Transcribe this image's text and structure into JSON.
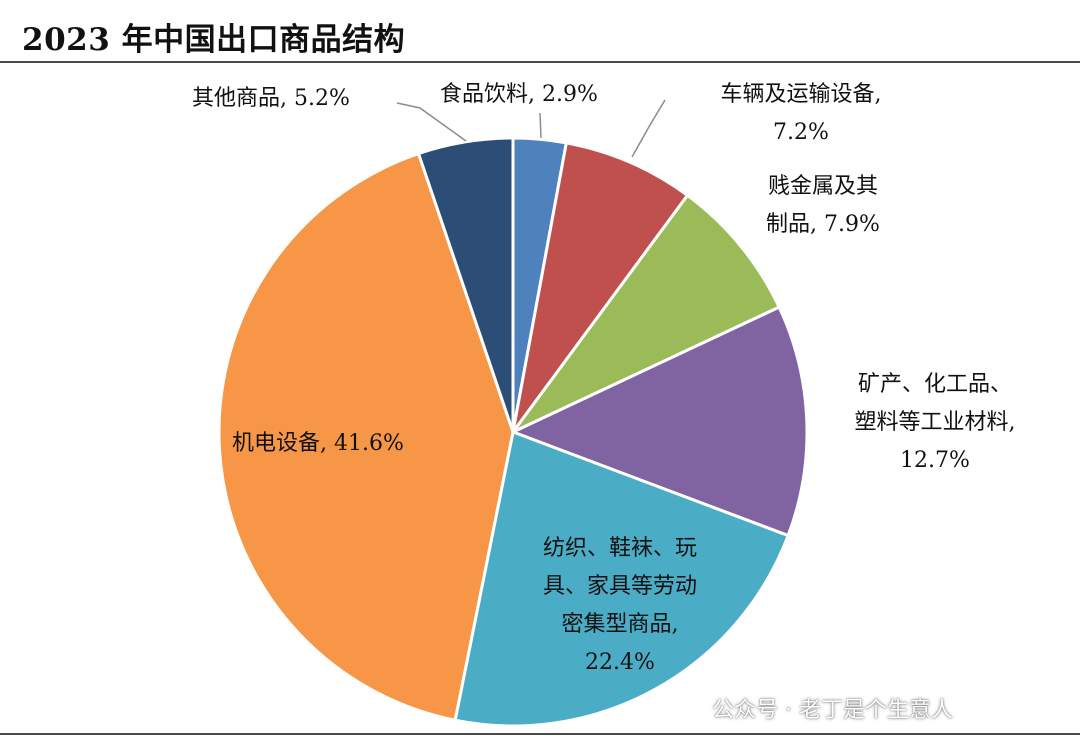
{
  "title": "2023 年中国出口商品结构",
  "watermark": "公众号 · 老丁是个生意人",
  "chart_data": {
    "type": "pie",
    "title": "2023 年中国出口商品结构",
    "unit": "%",
    "slices": [
      {
        "label": "食品饮料",
        "value": 2.9,
        "color": "#4f81bd"
      },
      {
        "label": "车辆及运输设备",
        "value": 7.2,
        "color": "#c0504d"
      },
      {
        "label": "贱金属及其制品",
        "value": 7.9,
        "color": "#9bbb59"
      },
      {
        "label": "矿产、化工品、塑料等工业材料",
        "value": 12.7,
        "color": "#8064a2"
      },
      {
        "label": "纺织、鞋袜、玩具、家具等劳动密集型商品",
        "value": 22.4,
        "color": "#4bacc6"
      },
      {
        "label": "机电设备",
        "value": 41.6,
        "color": "#f79646"
      },
      {
        "label": "其他商品",
        "value": 5.2,
        "color": "#2c4d75"
      }
    ],
    "labels": {
      "food": [
        "食品饮料, 2.9%"
      ],
      "vehicles": [
        "车辆及运输设备,",
        "7.2%"
      ],
      "metals": [
        "贱金属及其",
        "制品, 7.9%"
      ],
      "materials": [
        "矿产、化工品、",
        "塑料等工业材料,",
        "12.7%"
      ],
      "textiles": [
        "纺织、鞋袜、玩",
        "具、家具等劳动",
        "密集型商品,",
        "22.4%"
      ],
      "machinery": [
        "机电设备, 41.6%"
      ],
      "other": [
        "其他商品, 5.2%"
      ]
    }
  }
}
